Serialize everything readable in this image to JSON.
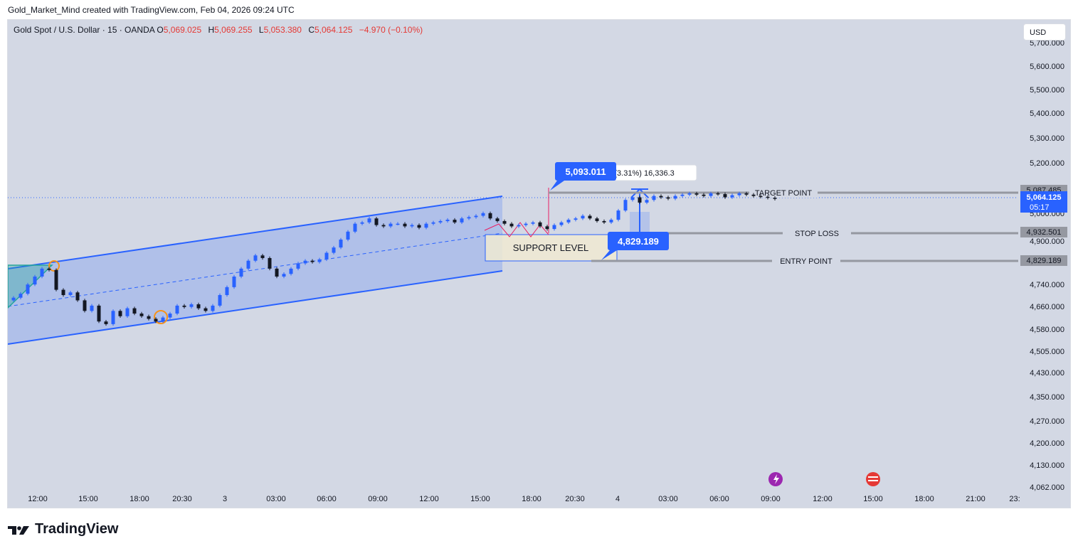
{
  "header": {
    "attribution": "Gold_Market_Mind created with TradingView.com, Feb 04, 2026 09:24 UTC"
  },
  "legend": {
    "symbol": "Gold Spot / U.S. Dollar · 15 · OANDA",
    "o_label": "O",
    "o_value": "5,069.025",
    "h_label": "H",
    "h_value": "5,069.255",
    "l_label": "L",
    "l_value": "5,053.380",
    "c_label": "C",
    "c_value": "5,064.125",
    "change": "−4.970 (−0.10%)"
  },
  "currency_button": "USD",
  "colors": {
    "background": "#d3d8e4",
    "bull": "#2962ff",
    "bear": "#131722",
    "channel": "#2962ff",
    "level_line": "#9598a1",
    "accent_label": "#2962ff"
  },
  "price_axis": {
    "ticks": [
      "5,700.000",
      "5,600.000",
      "5,500.000",
      "5,400.000",
      "5,300.000",
      "5,200.000",
      "5,000.000",
      "4,900.000",
      "4,740.000",
      "4,660.000",
      "4,580.000",
      "4,505.000",
      "4,430.000",
      "4,350.000",
      "4,270.000",
      "4,200.000",
      "4,130.000",
      "4,062.000"
    ],
    "labels": {
      "target": "5,087.485",
      "current": "5,064.125",
      "countdown": "05:17",
      "stop": "4,932.501",
      "entry": "4,829.189"
    }
  },
  "time_axis": [
    "12:00",
    "15:00",
    "18:00",
    "20:30",
    "3",
    "03:00",
    "06:00",
    "09:00",
    "12:00",
    "15:00",
    "18:00",
    "20:30",
    "4",
    "03:00",
    "06:00",
    "09:00",
    "12:00",
    "15:00",
    "18:00",
    "21:00",
    "23:"
  ],
  "annotations": {
    "high_callout": "5,093.011",
    "low_callout": "4,829.189",
    "measure_text": "3 (3.31%) 16,336.3",
    "support": "SUPPORT LEVEL",
    "target": "TARGET POINT",
    "stop": "STOP LOSS",
    "entry": "ENTRY POINT"
  },
  "footer": {
    "brand": "TradingView"
  },
  "chart_data": {
    "type": "candlestick",
    "title": "Gold Spot / U.S. Dollar · 15 · OANDA",
    "ylim": [
      4062,
      5750
    ],
    "levels": {
      "target": 5087.485,
      "stop": 4932.501,
      "entry": 4829.189,
      "current": 5064.125
    },
    "closes": [
      4690,
      4705,
      4740,
      4770,
      4800,
      4795,
      4720,
      4700,
      4710,
      4680,
      4640,
      4660,
      4600,
      4590,
      4640,
      4620,
      4650,
      4630,
      4620,
      4610,
      4600,
      4615,
      4630,
      4660,
      4655,
      4665,
      4650,
      4640,
      4660,
      4700,
      4730,
      4770,
      4800,
      4830,
      4850,
      4840,
      4800,
      4770,
      4780,
      4800,
      4820,
      4830,
      4825,
      4835,
      4860,
      4880,
      4910,
      4940,
      4970,
      4975,
      4990,
      4965,
      4960,
      4970,
      4970,
      4960,
      4965,
      4955,
      4970,
      4975,
      4980,
      4985,
      4975,
      4990,
      4995,
      5000,
      5010,
      4990,
      4980,
      4970,
      4960,
      4965,
      4970,
      4975,
      4960,
      4950,
      4965,
      4975,
      4985,
      4990,
      5000,
      4990,
      4980,
      4975,
      4985,
      5020,
      5060,
      5070,
      5050,
      5060,
      5075,
      5070,
      5065,
      5075,
      5080,
      5085,
      5080,
      5075,
      5085,
      5082,
      5070,
      5078,
      5085,
      5080,
      5075,
      5072,
      5068,
      5064
    ]
  }
}
